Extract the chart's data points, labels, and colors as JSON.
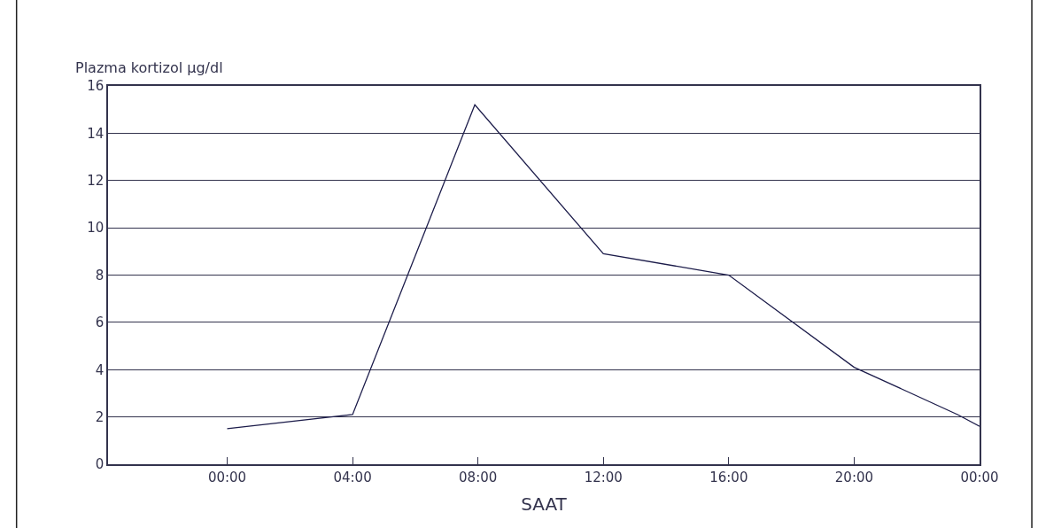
{
  "chart_data": {
    "type": "line",
    "ylabel": "Plazma kortizol µg/dl",
    "xlabel": "SAAT",
    "x": [
      0,
      4,
      7.9,
      12,
      16,
      20,
      23.3,
      24
    ],
    "series": [
      {
        "color": "#1c1c4a",
        "values": [
          1.5,
          2.1,
          15.2,
          8.9,
          8.0,
          4.1,
          2.1,
          1.6
        ]
      }
    ],
    "xlim": [
      -3.8,
      24
    ],
    "xticks": [
      {
        "value": 0,
        "label": "00:00"
      },
      {
        "value": 4,
        "label": "04:00"
      },
      {
        "value": 8,
        "label": "08:00"
      },
      {
        "value": 12,
        "label": "12:00"
      },
      {
        "value": 16,
        "label": "16:00"
      },
      {
        "value": 20,
        "label": "20:00"
      },
      {
        "value": 24,
        "label": "00:00"
      }
    ],
    "ylim": [
      0,
      16
    ],
    "yticks": [
      0,
      2,
      4,
      6,
      8,
      10,
      12,
      14,
      16
    ],
    "grid": "y",
    "marker": "none",
    "line_style": "solid"
  }
}
